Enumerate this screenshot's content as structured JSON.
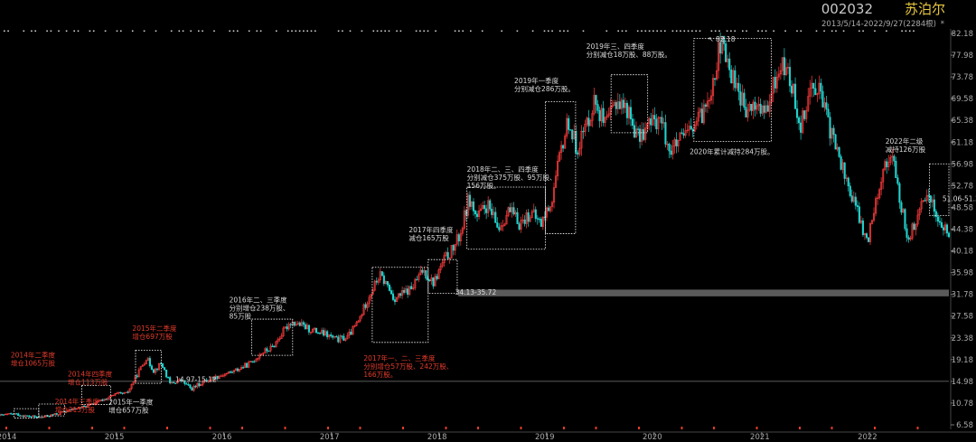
{
  "header": {
    "code": "002032",
    "name": "苏泊尔",
    "range": "2013/5/14-2022/9/27(2284根)",
    "star": "*"
  },
  "chart_data": {
    "type": "candlestick",
    "y_ticks": [
      "6.58",
      "10.78",
      "14.98",
      "19.18",
      "23.38",
      "27.58",
      "31.78",
      "35.98",
      "40.18",
      "44.38",
      "48.58",
      "52.78",
      "56.98",
      "61.18",
      "65.38",
      "69.58",
      "73.78",
      "77.98",
      "82.18"
    ],
    "x_ticks": [
      "2014",
      "2015",
      "2016",
      "2017",
      "2018",
      "2019",
      "2020",
      "2021",
      "2022"
    ],
    "ylim": [
      6.58,
      82.18
    ],
    "xlim": [
      2013.92,
      2022.74
    ],
    "colors": {
      "up": "#ff3d3d",
      "down": "#22d4cf",
      "box": "#ffffff",
      "anno_red": "#e23b2b",
      "anno_white": "#dddddd",
      "band": "#5a5a5a",
      "hline": "#7a7a7a"
    },
    "price_path": [
      [
        2013.92,
        8.4
      ],
      [
        2014.05,
        8.7
      ],
      [
        2014.15,
        8.3
      ],
      [
        2014.3,
        8.0
      ],
      [
        2014.45,
        8.7
      ],
      [
        2014.6,
        9.6
      ],
      [
        2014.75,
        10.3
      ],
      [
        2014.9,
        11.6
      ],
      [
        2015.0,
        12.5
      ],
      [
        2015.1,
        12.6
      ],
      [
        2015.2,
        16.5
      ],
      [
        2015.28,
        19.5
      ],
      [
        2015.35,
        17.0
      ],
      [
        2015.42,
        18.5
      ],
      [
        2015.5,
        14.5
      ],
      [
        2015.6,
        15.2
      ],
      [
        2015.7,
        13.5
      ],
      [
        2015.8,
        14.8
      ],
      [
        2015.95,
        16.0
      ],
      [
        2016.1,
        17.0
      ],
      [
        2016.25,
        18.5
      ],
      [
        2016.35,
        20.5
      ],
      [
        2016.45,
        21.5
      ],
      [
        2016.55,
        24.5
      ],
      [
        2016.62,
        26.5
      ],
      [
        2016.7,
        26.0
      ],
      [
        2016.8,
        25.0
      ],
      [
        2016.95,
        24.0
      ],
      [
        2017.05,
        23.0
      ],
      [
        2017.15,
        23.5
      ],
      [
        2017.25,
        26.5
      ],
      [
        2017.35,
        31.5
      ],
      [
        2017.45,
        35.5
      ],
      [
        2017.52,
        33.5
      ],
      [
        2017.58,
        31.0
      ],
      [
        2017.66,
        31.8
      ],
      [
        2017.75,
        33.0
      ],
      [
        2017.85,
        36.5
      ],
      [
        2017.95,
        34.0
      ],
      [
        2018.05,
        38.5
      ],
      [
        2018.13,
        40.5
      ],
      [
        2018.2,
        43.5
      ],
      [
        2018.28,
        50.5
      ],
      [
        2018.35,
        46.5
      ],
      [
        2018.45,
        49.0
      ],
      [
        2018.55,
        44.5
      ],
      [
        2018.65,
        48.0
      ],
      [
        2018.75,
        45.5
      ],
      [
        2018.85,
        47.5
      ],
      [
        2018.95,
        45.5
      ],
      [
        2019.05,
        50.0
      ],
      [
        2019.12,
        58.0
      ],
      [
        2019.2,
        65.5
      ],
      [
        2019.28,
        60.0
      ],
      [
        2019.36,
        64.0
      ],
      [
        2019.45,
        69.5
      ],
      [
        2019.55,
        64.0
      ],
      [
        2019.65,
        69.5
      ],
      [
        2019.75,
        67.5
      ],
      [
        2019.85,
        62.0
      ],
      [
        2019.95,
        64.5
      ],
      [
        2020.05,
        66.0
      ],
      [
        2020.15,
        59.5
      ],
      [
        2020.25,
        61.5
      ],
      [
        2020.35,
        63.5
      ],
      [
        2020.45,
        66.5
      ],
      [
        2020.55,
        73.5
      ],
      [
        2020.62,
        80.5
      ],
      [
        2020.7,
        75.0
      ],
      [
        2020.78,
        72.0
      ],
      [
        2020.85,
        66.5
      ],
      [
        2020.95,
        68.5
      ],
      [
        2021.05,
        66.5
      ],
      [
        2021.12,
        73.0
      ],
      [
        2021.2,
        76.5
      ],
      [
        2021.28,
        72.0
      ],
      [
        2021.36,
        64.5
      ],
      [
        2021.45,
        71.5
      ],
      [
        2021.52,
        72.5
      ],
      [
        2021.6,
        66.0
      ],
      [
        2021.7,
        59.5
      ],
      [
        2021.8,
        53.0
      ],
      [
        2021.9,
        47.0
      ],
      [
        2021.98,
        41.5
      ],
      [
        2022.05,
        49.5
      ],
      [
        2022.12,
        55.0
      ],
      [
        2022.2,
        59.5
      ],
      [
        2022.28,
        50.5
      ],
      [
        2022.36,
        42.5
      ],
      [
        2022.45,
        46.5
      ],
      [
        2022.55,
        52.0
      ],
      [
        2022.62,
        47.0
      ],
      [
        2022.68,
        44.5
      ],
      [
        2022.74,
        43.5
      ]
    ],
    "boxes": [
      [
        2014.05,
        2014.28,
        7.9,
        9.7
      ],
      [
        2014.28,
        2014.52,
        8.3,
        10.6
      ],
      [
        2014.68,
        2014.95,
        10.5,
        14.2
      ],
      [
        2015.18,
        2015.42,
        14.6,
        21.0
      ],
      [
        2016.26,
        2016.64,
        20.0,
        27.0
      ],
      [
        2017.38,
        2017.9,
        22.5,
        37.0
      ],
      [
        2017.9,
        2018.17,
        32.0,
        38.5
      ],
      [
        2018.26,
        2018.99,
        40.5,
        52.5
      ],
      [
        2018.99,
        2019.27,
        43.5,
        69.0
      ],
      [
        2019.6,
        2019.94,
        63.0,
        74.2
      ],
      [
        2020.37,
        2021.09,
        61.3,
        81.2
      ],
      [
        2022.56,
        2022.74,
        47.0,
        57.0
      ]
    ],
    "band": [
      31.4,
      32.7
    ],
    "hline": 14.98,
    "level_labels": [
      "14.97-15.12",
      "34.13-35.72",
      "51.06-51.31"
    ],
    "peak_label": "82.18",
    "annotations": [
      {
        "lines": [
          "2014年二季度",
          "增仓1065万股"
        ],
        "color": "red"
      },
      {
        "lines": [
          "2014年四季度",
          "增仓113万股"
        ],
        "color": "red"
      },
      {
        "lines": [
          "2014年三季度",
          "增仓213万股"
        ],
        "color": "red"
      },
      {
        "lines": [
          "2015年一季度",
          "增仓657万股"
        ],
        "color": "white"
      },
      {
        "lines": [
          "2015年二季度",
          "增仓697万股"
        ],
        "color": "red"
      },
      {
        "lines": [
          "2016年二、三季度",
          "分别增仓238万股、",
          "85万股"
        ],
        "color": "white"
      },
      {
        "lines": [
          "2017年一、二、三季度",
          "分别增仓57万股、242万股、",
          "166万股。"
        ],
        "color": "red"
      },
      {
        "lines": [
          "2017年四季度",
          "减仓165万股"
        ],
        "color": "white"
      },
      {
        "lines": [
          "2018年二、三、四季度",
          "分别减仓375万股、95万股、",
          "156万股。"
        ],
        "color": "white"
      },
      {
        "lines": [
          "2019年一季度",
          "分别减仓286万股。"
        ],
        "color": "white"
      },
      {
        "lines": [
          "2019年三、四季度",
          "分别减仓18万股、88万股。"
        ],
        "color": "white"
      },
      {
        "lines": [
          "2020年累计减持284万股。"
        ],
        "color": "white"
      },
      {
        "lines": [
          "2022年二级",
          "减持126万股"
        ],
        "color": "white"
      }
    ]
  }
}
